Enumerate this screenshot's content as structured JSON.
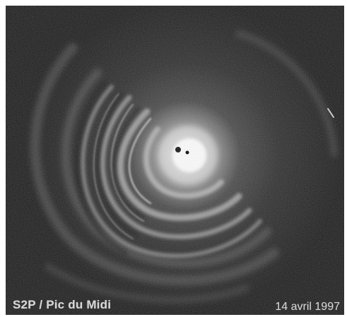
{
  "image": {
    "caption_left": "S2P / Pic du Midi",
    "caption_right": "14 avril 1997",
    "colors": {
      "background": "#1d1d1d",
      "nucleus": "#ffffff",
      "arcs": "#bdbdbd",
      "text": "#d8d8d8"
    }
  }
}
